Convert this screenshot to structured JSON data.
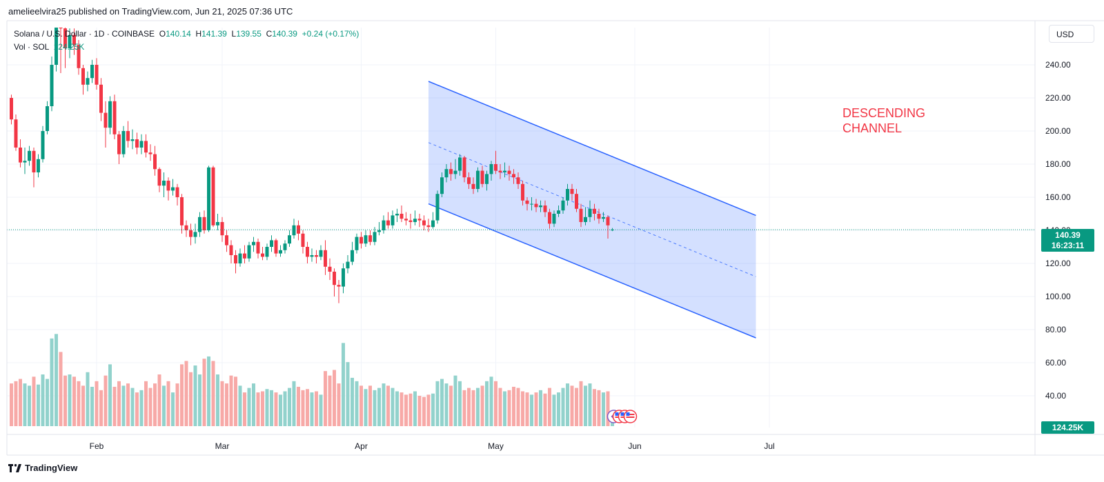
{
  "header": {
    "published_line": "amelieelvira25 published on TradingView.com, Jun 21, 2025 07:36 UTC"
  },
  "legend": {
    "symbol": "Solana / U.S. Dollar · 1D · COINBASE",
    "o_label": "O",
    "o_value": "140.14",
    "h_label": "H",
    "h_value": "141.39",
    "l_label": "L",
    "l_value": "139.55",
    "c_label": "C",
    "c_value": "140.39",
    "change": "+0.24 (+0.17%)",
    "vol_label": "Vol · SOL",
    "vol_value": "124.25K"
  },
  "currency": "USD",
  "last_price": {
    "price": "140.39",
    "countdown": "16:23:11"
  },
  "volume_tag": "124.25K",
  "annotation": {
    "line1": "DESCENDING",
    "line2": "CHANNEL"
  },
  "brand": "TradingView",
  "colors": {
    "up": "#089981",
    "down": "#f23645",
    "up_volume": "#92d2cc",
    "down_volume": "#f7a9a7",
    "channel_line": "#2962ff",
    "channel_fill": "#2962ff"
  },
  "chart_data": {
    "type": "candlestick",
    "x_ticks": [
      "Feb",
      "Mar",
      "Apr",
      "May",
      "Jun",
      "Jul"
    ],
    "y_ticks": [
      "240.00",
      "220.00",
      "200.00",
      "180.00",
      "160.00",
      "140.00",
      "120.00",
      "100.00",
      "80.00",
      "60.00",
      "40.00"
    ],
    "ylim": [
      20,
      260
    ],
    "start_date": "2025-01-13",
    "series": [
      {
        "o": 220,
        "c": 207,
        "h": 222,
        "l": 204,
        "v": 38
      },
      {
        "o": 207,
        "c": 190,
        "h": 210,
        "l": 188,
        "v": 40
      },
      {
        "o": 190,
        "c": 181,
        "h": 195,
        "l": 178,
        "v": 42
      },
      {
        "o": 181,
        "c": 182,
        "h": 190,
        "l": 174,
        "v": 38
      },
      {
        "o": 182,
        "c": 188,
        "h": 191,
        "l": 179,
        "v": 36
      },
      {
        "o": 188,
        "c": 175,
        "h": 190,
        "l": 166,
        "v": 44
      },
      {
        "o": 175,
        "c": 183,
        "h": 186,
        "l": 172,
        "v": 37
      },
      {
        "o": 183,
        "c": 200,
        "h": 203,
        "l": 181,
        "v": 46
      },
      {
        "o": 200,
        "c": 215,
        "h": 218,
        "l": 198,
        "v": 42
      },
      {
        "o": 215,
        "c": 240,
        "h": 245,
        "l": 212,
        "v": 78
      },
      {
        "o": 240,
        "c": 270,
        "h": 280,
        "l": 236,
        "v": 82
      },
      {
        "o": 270,
        "c": 262,
        "h": 285,
        "l": 235,
        "v": 66
      },
      {
        "o": 262,
        "c": 250,
        "h": 268,
        "l": 238,
        "v": 45
      },
      {
        "o": 250,
        "c": 258,
        "h": 262,
        "l": 244,
        "v": 46
      },
      {
        "o": 258,
        "c": 252,
        "h": 262,
        "l": 246,
        "v": 44
      },
      {
        "o": 252,
        "c": 238,
        "h": 255,
        "l": 234,
        "v": 40
      },
      {
        "o": 238,
        "c": 228,
        "h": 240,
        "l": 222,
        "v": 36
      },
      {
        "o": 228,
        "c": 232,
        "h": 236,
        "l": 224,
        "v": 48
      },
      {
        "o": 232,
        "c": 240,
        "h": 243,
        "l": 229,
        "v": 35
      },
      {
        "o": 240,
        "c": 228,
        "h": 244,
        "l": 225,
        "v": 40
      },
      {
        "o": 228,
        "c": 211,
        "h": 232,
        "l": 206,
        "v": 32
      },
      {
        "o": 211,
        "c": 202,
        "h": 218,
        "l": 190,
        "v": 45
      },
      {
        "o": 202,
        "c": 218,
        "h": 221,
        "l": 198,
        "v": 55
      },
      {
        "o": 218,
        "c": 198,
        "h": 222,
        "l": 195,
        "v": 35
      },
      {
        "o": 198,
        "c": 186,
        "h": 200,
        "l": 180,
        "v": 40
      },
      {
        "o": 186,
        "c": 200,
        "h": 203,
        "l": 184,
        "v": 36
      },
      {
        "o": 200,
        "c": 194,
        "h": 206,
        "l": 190,
        "v": 38
      },
      {
        "o": 194,
        "c": 195,
        "h": 201,
        "l": 189,
        "v": 34
      },
      {
        "o": 195,
        "c": 190,
        "h": 199,
        "l": 186,
        "v": 30
      },
      {
        "o": 190,
        "c": 194,
        "h": 198,
        "l": 186,
        "v": 32
      },
      {
        "o": 194,
        "c": 187,
        "h": 198,
        "l": 184,
        "v": 40
      },
      {
        "o": 187,
        "c": 186,
        "h": 192,
        "l": 182,
        "v": 34
      },
      {
        "o": 186,
        "c": 177,
        "h": 191,
        "l": 173,
        "v": 38
      },
      {
        "o": 177,
        "c": 167,
        "h": 178,
        "l": 163,
        "v": 46
      },
      {
        "o": 167,
        "c": 170,
        "h": 175,
        "l": 160,
        "v": 36
      },
      {
        "o": 170,
        "c": 164,
        "h": 172,
        "l": 158,
        "v": 40
      },
      {
        "o": 164,
        "c": 166,
        "h": 171,
        "l": 161,
        "v": 30
      },
      {
        "o": 166,
        "c": 160,
        "h": 168,
        "l": 155,
        "v": 38
      },
      {
        "o": 160,
        "c": 143,
        "h": 162,
        "l": 138,
        "v": 55
      },
      {
        "o": 143,
        "c": 140,
        "h": 146,
        "l": 136,
        "v": 58
      },
      {
        "o": 140,
        "c": 136,
        "h": 144,
        "l": 131,
        "v": 48
      },
      {
        "o": 136,
        "c": 139,
        "h": 144,
        "l": 132,
        "v": 54
      },
      {
        "o": 139,
        "c": 148,
        "h": 151,
        "l": 136,
        "v": 46
      },
      {
        "o": 148,
        "c": 140,
        "h": 152,
        "l": 138,
        "v": 60
      },
      {
        "o": 140,
        "c": 178,
        "h": 179,
        "l": 139,
        "v": 62
      },
      {
        "o": 178,
        "c": 143,
        "h": 179,
        "l": 142,
        "v": 58
      },
      {
        "o": 143,
        "c": 145,
        "h": 150,
        "l": 140,
        "v": 46
      },
      {
        "o": 145,
        "c": 137,
        "h": 148,
        "l": 133,
        "v": 40
      },
      {
        "o": 137,
        "c": 131,
        "h": 140,
        "l": 127,
        "v": 38
      },
      {
        "o": 131,
        "c": 125,
        "h": 134,
        "l": 120,
        "v": 45
      },
      {
        "o": 125,
        "c": 120,
        "h": 128,
        "l": 114,
        "v": 44
      },
      {
        "o": 120,
        "c": 126,
        "h": 129,
        "l": 118,
        "v": 36
      },
      {
        "o": 126,
        "c": 123,
        "h": 131,
        "l": 120,
        "v": 30
      },
      {
        "o": 123,
        "c": 131,
        "h": 133,
        "l": 121,
        "v": 34
      },
      {
        "o": 131,
        "c": 133,
        "h": 136,
        "l": 127,
        "v": 38
      },
      {
        "o": 133,
        "c": 126,
        "h": 135,
        "l": 123,
        "v": 30
      },
      {
        "o": 126,
        "c": 124,
        "h": 130,
        "l": 122,
        "v": 31
      },
      {
        "o": 124,
        "c": 130,
        "h": 132,
        "l": 122,
        "v": 33
      },
      {
        "o": 130,
        "c": 134,
        "h": 137,
        "l": 127,
        "v": 32
      },
      {
        "o": 134,
        "c": 126,
        "h": 135,
        "l": 124,
        "v": 30
      },
      {
        "o": 126,
        "c": 128,
        "h": 131,
        "l": 124,
        "v": 28
      },
      {
        "o": 128,
        "c": 132,
        "h": 134,
        "l": 126,
        "v": 31
      },
      {
        "o": 132,
        "c": 137,
        "h": 140,
        "l": 130,
        "v": 34
      },
      {
        "o": 137,
        "c": 143,
        "h": 147,
        "l": 135,
        "v": 40
      },
      {
        "o": 143,
        "c": 138,
        "h": 146,
        "l": 134,
        "v": 35
      },
      {
        "o": 138,
        "c": 130,
        "h": 140,
        "l": 126,
        "v": 32
      },
      {
        "o": 130,
        "c": 124,
        "h": 133,
        "l": 120,
        "v": 33
      },
      {
        "o": 124,
        "c": 125,
        "h": 129,
        "l": 121,
        "v": 30
      },
      {
        "o": 125,
        "c": 124,
        "h": 128,
        "l": 120,
        "v": 31
      },
      {
        "o": 124,
        "c": 128,
        "h": 131,
        "l": 122,
        "v": 28
      },
      {
        "o": 128,
        "c": 118,
        "h": 134,
        "l": 113,
        "v": 49
      },
      {
        "o": 118,
        "c": 115,
        "h": 123,
        "l": 110,
        "v": 45
      },
      {
        "o": 115,
        "c": 107,
        "h": 117,
        "l": 100,
        "v": 50
      },
      {
        "o": 107,
        "c": 106,
        "h": 110,
        "l": 96,
        "v": 38
      },
      {
        "o": 106,
        "c": 117,
        "h": 120,
        "l": 102,
        "v": 74
      },
      {
        "o": 117,
        "c": 121,
        "h": 125,
        "l": 114,
        "v": 57
      },
      {
        "o": 121,
        "c": 128,
        "h": 133,
        "l": 119,
        "v": 43
      },
      {
        "o": 128,
        "c": 136,
        "h": 138,
        "l": 126,
        "v": 40
      },
      {
        "o": 136,
        "c": 132,
        "h": 139,
        "l": 129,
        "v": 36
      },
      {
        "o": 132,
        "c": 137,
        "h": 140,
        "l": 130,
        "v": 33
      },
      {
        "o": 137,
        "c": 133,
        "h": 140,
        "l": 131,
        "v": 36
      },
      {
        "o": 133,
        "c": 139,
        "h": 142,
        "l": 131,
        "v": 32
      },
      {
        "o": 139,
        "c": 140,
        "h": 145,
        "l": 137,
        "v": 34
      },
      {
        "o": 140,
        "c": 146,
        "h": 149,
        "l": 138,
        "v": 38
      },
      {
        "o": 146,
        "c": 143,
        "h": 151,
        "l": 141,
        "v": 36
      },
      {
        "o": 143,
        "c": 149,
        "h": 152,
        "l": 141,
        "v": 34
      },
      {
        "o": 149,
        "c": 150,
        "h": 153,
        "l": 145,
        "v": 31
      },
      {
        "o": 150,
        "c": 147,
        "h": 155,
        "l": 145,
        "v": 30
      },
      {
        "o": 147,
        "c": 146,
        "h": 151,
        "l": 143,
        "v": 28
      },
      {
        "o": 146,
        "c": 145,
        "h": 150,
        "l": 141,
        "v": 29
      },
      {
        "o": 145,
        "c": 147,
        "h": 152,
        "l": 143,
        "v": 31
      },
      {
        "o": 147,
        "c": 146,
        "h": 150,
        "l": 142,
        "v": 27
      },
      {
        "o": 146,
        "c": 143,
        "h": 149,
        "l": 140,
        "v": 26
      },
      {
        "o": 143,
        "c": 142,
        "h": 147,
        "l": 139,
        "v": 28
      },
      {
        "o": 142,
        "c": 146,
        "h": 151,
        "l": 141,
        "v": 29
      },
      {
        "o": 146,
        "c": 162,
        "h": 164,
        "l": 144,
        "v": 40
      },
      {
        "o": 162,
        "c": 172,
        "h": 175,
        "l": 160,
        "v": 42
      },
      {
        "o": 172,
        "c": 177,
        "h": 180,
        "l": 169,
        "v": 38
      },
      {
        "o": 177,
        "c": 174,
        "h": 181,
        "l": 170,
        "v": 36
      },
      {
        "o": 174,
        "c": 176,
        "h": 183,
        "l": 171,
        "v": 45
      },
      {
        "o": 176,
        "c": 184,
        "h": 186,
        "l": 173,
        "v": 40
      },
      {
        "o": 184,
        "c": 172,
        "h": 185,
        "l": 169,
        "v": 32
      },
      {
        "o": 172,
        "c": 168,
        "h": 175,
        "l": 165,
        "v": 34
      },
      {
        "o": 168,
        "c": 165,
        "h": 172,
        "l": 162,
        "v": 32
      },
      {
        "o": 165,
        "c": 176,
        "h": 178,
        "l": 163,
        "v": 34
      },
      {
        "o": 176,
        "c": 168,
        "h": 179,
        "l": 166,
        "v": 36
      },
      {
        "o": 168,
        "c": 174,
        "h": 176,
        "l": 164,
        "v": 40
      },
      {
        "o": 174,
        "c": 180,
        "h": 182,
        "l": 170,
        "v": 44
      },
      {
        "o": 180,
        "c": 176,
        "h": 188,
        "l": 174,
        "v": 40
      },
      {
        "o": 176,
        "c": 175,
        "h": 180,
        "l": 171,
        "v": 34
      },
      {
        "o": 175,
        "c": 176,
        "h": 181,
        "l": 172,
        "v": 31
      },
      {
        "o": 176,
        "c": 174,
        "h": 179,
        "l": 170,
        "v": 32
      },
      {
        "o": 174,
        "c": 172,
        "h": 177,
        "l": 168,
        "v": 35
      },
      {
        "o": 172,
        "c": 168,
        "h": 175,
        "l": 165,
        "v": 34
      },
      {
        "o": 168,
        "c": 158,
        "h": 170,
        "l": 155,
        "v": 31
      },
      {
        "o": 158,
        "c": 156,
        "h": 160,
        "l": 152,
        "v": 30
      },
      {
        "o": 156,
        "c": 156,
        "h": 160,
        "l": 152,
        "v": 28
      },
      {
        "o": 156,
        "c": 154,
        "h": 159,
        "l": 151,
        "v": 30
      },
      {
        "o": 154,
        "c": 155,
        "h": 158,
        "l": 151,
        "v": 32
      },
      {
        "o": 155,
        "c": 151,
        "h": 158,
        "l": 148,
        "v": 29
      },
      {
        "o": 151,
        "c": 144,
        "h": 153,
        "l": 141,
        "v": 34
      },
      {
        "o": 144,
        "c": 150,
        "h": 152,
        "l": 142,
        "v": 28
      },
      {
        "o": 150,
        "c": 152,
        "h": 155,
        "l": 148,
        "v": 30
      },
      {
        "o": 152,
        "c": 158,
        "h": 160,
        "l": 150,
        "v": 34
      },
      {
        "o": 158,
        "c": 165,
        "h": 168,
        "l": 155,
        "v": 38
      },
      {
        "o": 165,
        "c": 162,
        "h": 168,
        "l": 158,
        "v": 36
      },
      {
        "o": 162,
        "c": 153,
        "h": 165,
        "l": 151,
        "v": 34
      },
      {
        "o": 153,
        "c": 145,
        "h": 156,
        "l": 142,
        "v": 40
      },
      {
        "o": 145,
        "c": 148,
        "h": 154,
        "l": 143,
        "v": 36
      },
      {
        "o": 148,
        "c": 153,
        "h": 158,
        "l": 145,
        "v": 38
      },
      {
        "o": 153,
        "c": 150,
        "h": 156,
        "l": 146,
        "v": 33
      },
      {
        "o": 150,
        "c": 147,
        "h": 153,
        "l": 144,
        "v": 32
      },
      {
        "o": 147,
        "c": 148,
        "h": 151,
        "l": 145,
        "v": 30
      },
      {
        "o": 148,
        "c": 143,
        "h": 149,
        "l": 135,
        "v": 31
      },
      {
        "o": 140.14,
        "c": 140.39,
        "h": 141.39,
        "l": 139.55,
        "v": 12
      }
    ],
    "channel": {
      "upper": [
        {
          "date": "2025-04-16",
          "price": 230
        },
        {
          "date": "2025-06-28",
          "price": 149
        }
      ],
      "lower": [
        {
          "date": "2025-04-16",
          "price": 156
        },
        {
          "date": "2025-06-28",
          "price": 75
        }
      ],
      "mid": [
        {
          "date": "2025-04-16",
          "price": 193
        },
        {
          "date": "2025-06-28",
          "price": 112
        }
      ]
    },
    "volume_units": "K"
  }
}
